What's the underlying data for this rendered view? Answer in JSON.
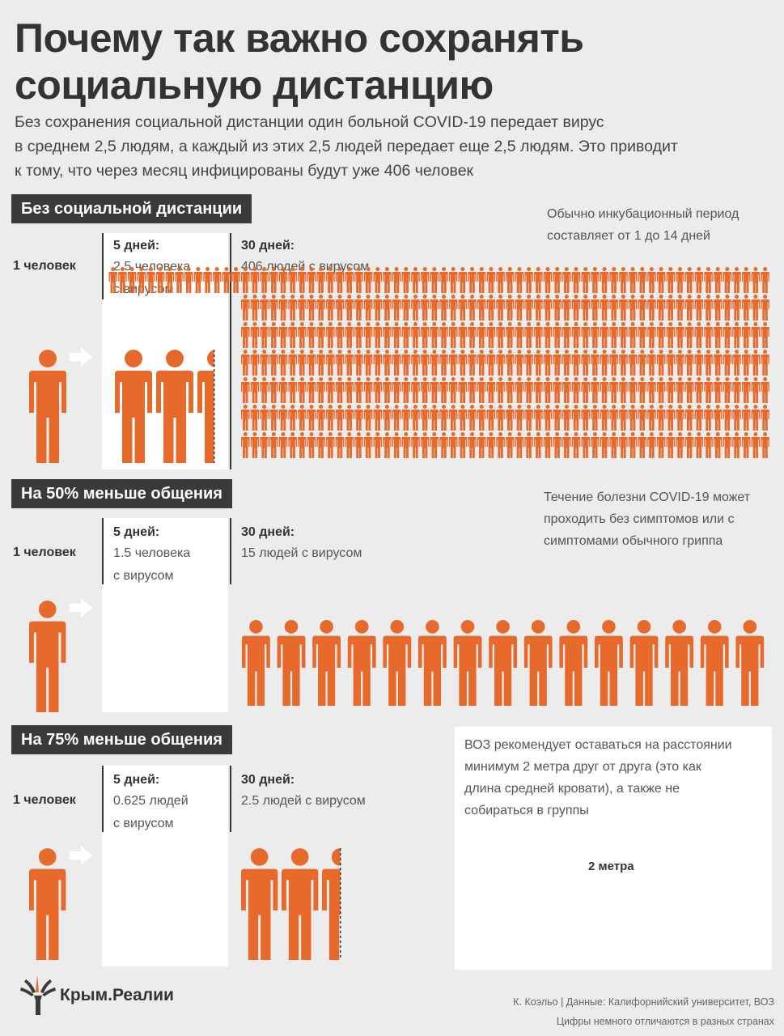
{
  "title_line1": "Почему так важно сохранять",
  "title_line2": "социальную дистанцию",
  "intro_line1": "Без сохранения социальной дистанции один больной COVID-19 передает вирус",
  "intro_line2": "в среднем 2,5 людям, а каждый из этих 2,5 людей передает еще 2,5 людям. Это приводит",
  "intro_line3": "к тому, что через месяц инфицированы будут уже 406 человек",
  "colors": {
    "accent": "#e8692c",
    "dark": "#3a3a3a",
    "background": "#ececec",
    "panel": "#ffffff",
    "bed": "#c8c8c8",
    "bed_frame": "#8a8a8a"
  },
  "sections": [
    {
      "heading": "Без социальной дистанции",
      "note_line1": "Обычно инкубационный период",
      "note_line2": "составляет от 1 до 14 дней",
      "start_label": "1 человек",
      "day5_label": "5 дней:",
      "day5_line1": "2.5 человека",
      "day5_line2": "с вирусом",
      "day30_label": "30 дней:",
      "day30_desc": "406 людей с вирусом",
      "day5_count": 2.5,
      "day30_count": 406
    },
    {
      "heading": "На 50% меньше общения",
      "note_line1": "Течение болезни COVID-19 может",
      "note_line2": "проходить без симптомов или с",
      "note_line3": "симптомами обычного гриппа",
      "start_label": "1 человек",
      "day5_label": "5 дней:",
      "day5_line1": "1.5 человека",
      "day5_line2": "с вирусом",
      "day30_label": "30 дней:",
      "day30_desc": "15 людей с вирусом",
      "day5_count": 1.5,
      "day30_count": 15
    },
    {
      "heading": "На 75% меньше общения",
      "note_line1": "ВОЗ рекомендует оставаться на расстоянии",
      "note_line2": "минимум 2 метра друг от друга (это как",
      "note_line3": "длина средней кровати), а также не",
      "note_line4": "собираться в группы",
      "start_label": "1 человек",
      "day5_label": "5 дней:",
      "day5_line1": "0.625 людей",
      "day5_line2": "с вирусом",
      "day30_label": "30 дней:",
      "day30_desc": "2.5 людей с вирусом",
      "day5_count": 0.625,
      "day30_count": 2.5,
      "distance_label": "2 метра"
    }
  ],
  "icons": {
    "person": "person-icon",
    "arrow": "arrow-right-icon",
    "bed": "bed-icon",
    "logo": "krym-realii-logo"
  },
  "brand": "Крым.Реалии",
  "credit_line1": "К. Коэльо | Данные: Калифорнийский университет, ВОЗ",
  "credit_line2": "Цифры немного отличаются в разных странах"
}
